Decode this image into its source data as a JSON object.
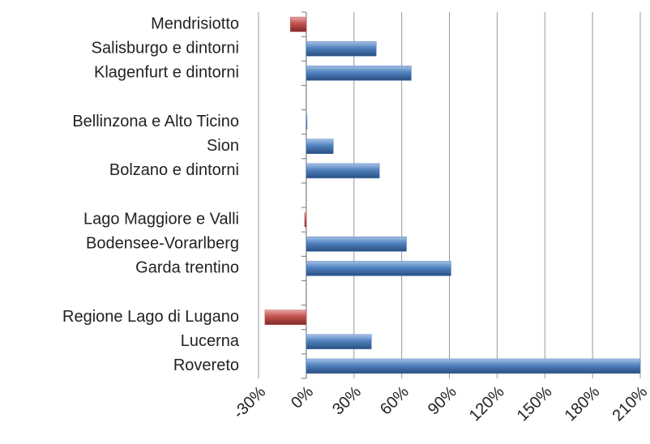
{
  "chart_data": {
    "type": "hbar",
    "categories": [
      "Mendrisiotto",
      "Salisburgo e dintorni",
      "Klagenfurt e dintorni",
      null,
      "Bellinzona e Alto Ticino",
      "Sion",
      "Bolzano e dintorni",
      null,
      "Lago Maggiore e Valli",
      "Bodensee-Vorarlberg",
      "Garda trentino",
      null,
      "Regione Lago di Lugano",
      "Lucerna",
      "Rovereto"
    ],
    "values": [
      -10,
      44,
      66,
      null,
      0,
      17,
      46,
      null,
      -1,
      63,
      91,
      null,
      -26,
      41,
      210
    ],
    "color": "#4f81bd",
    "negative_color": "#c0504d",
    "xlim": [
      -30,
      210
    ],
    "xticks": [
      {
        "value": -30,
        "label": "-30%"
      },
      {
        "value": 0,
        "label": "0%"
      },
      {
        "value": 30,
        "label": "30%"
      },
      {
        "value": 60,
        "label": "60%"
      },
      {
        "value": 90,
        "label": "90%"
      },
      {
        "value": 120,
        "label": "120%"
      },
      {
        "value": 150,
        "label": "150%"
      },
      {
        "value": 180,
        "label": "180%"
      },
      {
        "value": 210,
        "label": "210%"
      }
    ],
    "grid": true
  }
}
